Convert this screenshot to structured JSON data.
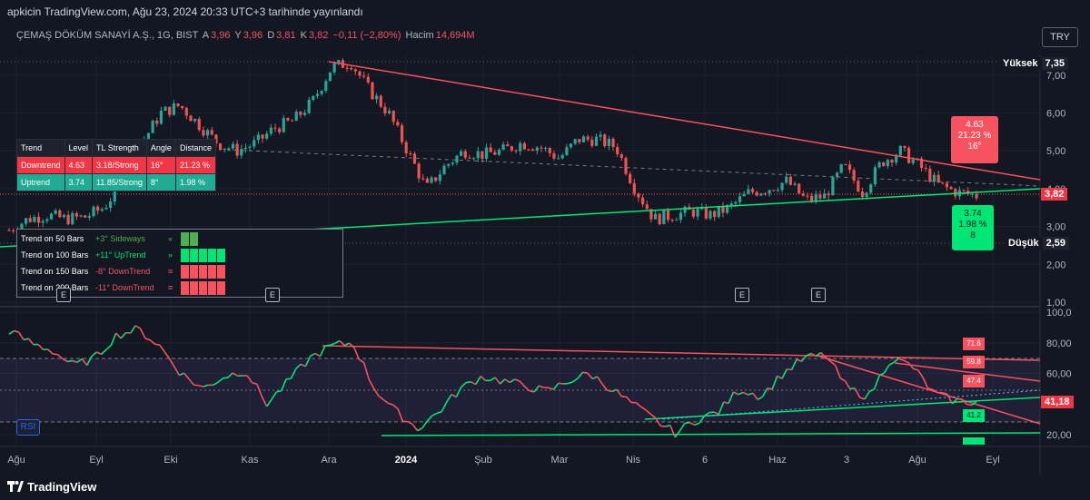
{
  "header": {
    "publish_line": "apkicin TradingView.com, Ağu 23, 2024 20:33 UTC+3 tarihinde yayınlandı",
    "symbol": "ÇEMAŞ DÖKÜM SANAYİ A.Ş., 1G, BIST",
    "ohlc": {
      "open_label": "A",
      "open": "3,96",
      "high_label": "Y",
      "high": "3,96",
      "low_label": "D",
      "low": "3,81",
      "close_label": "K",
      "close": "3,82",
      "change": "−0,11 (−2,80%)",
      "volume_label": "Hacim",
      "volume": "14,694M"
    },
    "currency_button": "TRY"
  },
  "price_axis": {
    "ticks": [
      "7,00",
      "6,00",
      "5,00",
      "4,00",
      "3,00",
      "2,00",
      "1,00"
    ],
    "high_label": "Yüksek",
    "high_value": "7,35",
    "low_label": "Düşük",
    "low_value": "2,59",
    "last_price": "3,82"
  },
  "rsi_axis": {
    "ticks": [
      "100,0",
      "80,00",
      "60,00",
      "20,00"
    ],
    "last_value": "41,18",
    "indicator_label": "RSI"
  },
  "time_axis": {
    "labels": [
      "Ağu",
      "Eyl",
      "Eki",
      "Kas",
      "Ara",
      "2024",
      "Şub",
      "Mar",
      "Nis",
      "6",
      "Haz",
      "3",
      "Ağu",
      "Eyl"
    ]
  },
  "trendline_table": {
    "headers": [
      "Trend",
      "Level",
      "TL Strength",
      "Angle",
      "Distance"
    ],
    "rows": [
      {
        "trend": "Downtrend",
        "level": "4.63",
        "strength": "3.18/Strong",
        "angle": "16°",
        "distance": "21.23 %"
      },
      {
        "trend": "Uptrend",
        "level": "3.74",
        "strength": "11.85/Strong",
        "angle": "8°",
        "distance": "1.98 %"
      }
    ]
  },
  "trend_panel": {
    "rows": [
      {
        "label": "Trend on 50 Bars",
        "value": "+3° Sideways",
        "arrow": "«",
        "color": "#4caf50"
      },
      {
        "label": "Trend on 100 Bars",
        "value": "+11° UpTrend",
        "arrow": "»",
        "color": "#00e676"
      },
      {
        "label": "Trend on 150 Bars",
        "value": "-8° DownTrend",
        "arrow": "≡",
        "color": "#f7525f"
      },
      {
        "label": "Trend on 200 Bars",
        "value": "-11° DownTrend",
        "arrow": "≡",
        "color": "#f7525f"
      }
    ]
  },
  "annotations": {
    "down_label": [
      "4.63",
      "21.23 %",
      "16°"
    ],
    "up_label": [
      "3.74",
      "1.98 %",
      "8"
    ],
    "rsi_tags": [
      "71.6",
      "59.8",
      "47.4",
      "41.2"
    ]
  },
  "earnings_badge": "E",
  "footer": {
    "brand": "TradingView"
  },
  "colors": {
    "up": "#26a69a",
    "down": "#ef5350",
    "trend_up": "#00e676",
    "trend_down": "#f7525f",
    "background": "#131722"
  },
  "chart_data": {
    "type": "candlestick",
    "x_range": [
      "Ağu 2023",
      "Eyl 2024"
    ],
    "ylim": [
      1.0,
      7.35
    ],
    "key_levels": {
      "high": 7.35,
      "low": 2.59,
      "last": 3.82,
      "down_trend_level": 4.63,
      "up_trend_level": 3.74
    },
    "price_path": [
      2.9,
      3.2,
      3.3,
      3.2,
      3.25,
      3.5,
      4.2,
      5.2,
      6.0,
      6.2,
      5.7,
      5.2,
      5.0,
      5.2,
      5.6,
      5.8,
      6.3,
      7.2,
      7.35,
      6.6,
      6.0,
      5.0,
      4.0,
      4.6,
      5.0,
      4.9,
      5.0,
      5.2,
      5.1,
      4.8,
      5.3,
      5.3,
      5.1,
      4.0,
      3.2,
      3.3,
      3.4,
      3.3,
      3.5,
      3.9,
      4.0,
      4.2,
      3.7,
      3.8,
      4.6,
      3.9,
      4.7,
      5.0,
      4.6,
      4.1,
      3.9,
      3.82
    ],
    "rsi_ylim": [
      15,
      100
    ],
    "rsi_path": [
      88,
      80,
      75,
      65,
      70,
      85,
      89,
      78,
      60,
      50,
      58,
      62,
      40,
      55,
      70,
      78,
      80,
      50,
      35,
      24,
      35,
      50,
      58,
      55,
      52,
      48,
      55,
      60,
      50,
      40,
      30,
      21,
      30,
      35,
      50,
      45,
      60,
      70,
      72,
      50,
      45,
      70,
      65,
      47,
      42,
      41.18
    ]
  }
}
